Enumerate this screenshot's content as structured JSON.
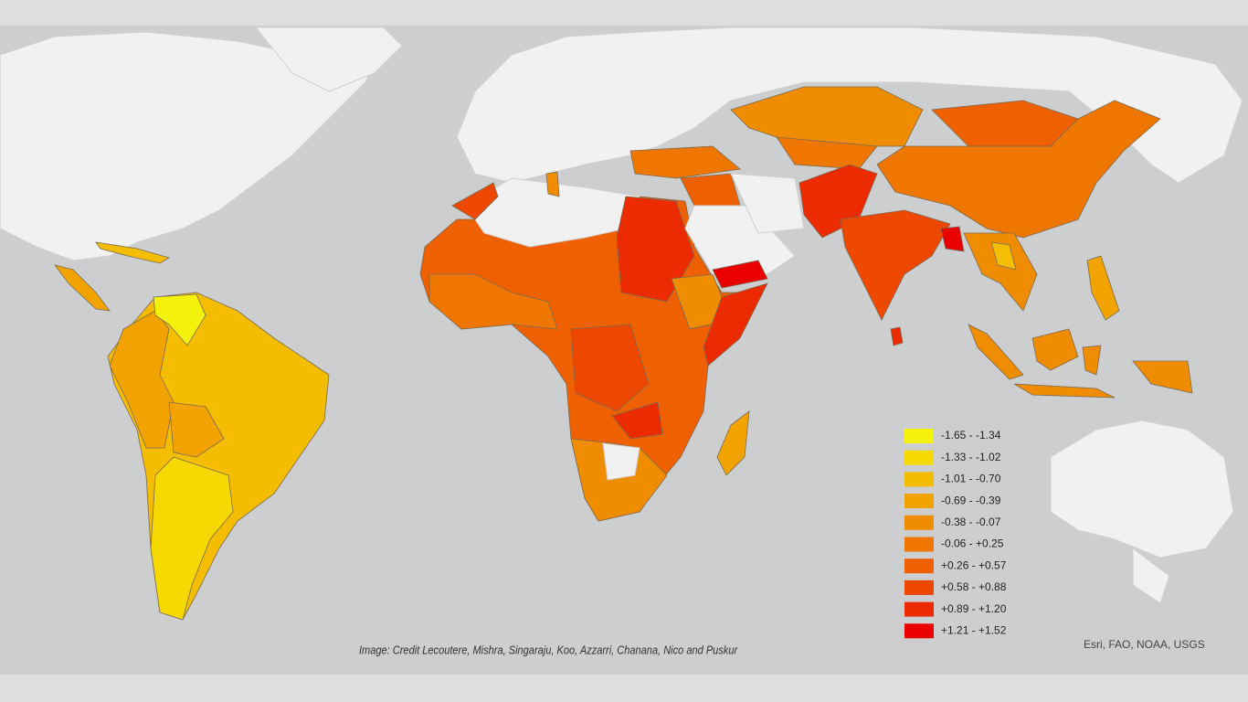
{
  "legend": {
    "items": [
      {
        "label": "-1.65 - -1.34",
        "color": "#f4f20b"
      },
      {
        "label": "-1.33 - -1.02",
        "color": "#f5d900"
      },
      {
        "label": "-1.01 - -0.70",
        "color": "#f4bd00"
      },
      {
        "label": "-0.69 - -0.39",
        "color": "#f2a300"
      },
      {
        "label": "-0.38 - -0.07",
        "color": "#f08c00"
      },
      {
        "label": "-0.06 - +0.25",
        "color": "#ef7700"
      },
      {
        "label": "+0.26 - +0.57",
        "color": "#ee6000"
      },
      {
        "label": "+0.58 - +0.88",
        "color": "#ed4700"
      },
      {
        "label": "+0.89 - +1.20",
        "color": "#ec2c00"
      },
      {
        "label": "+1.21 - +1.52",
        "color": "#eb0000"
      }
    ]
  },
  "credit": "Image: Credit Lecoutere, Mishra, Singaraju, Koo, Azzarri, Chanana, Nico and Puskur",
  "attribution": "Esri, FAO, NOAA, USGS"
}
